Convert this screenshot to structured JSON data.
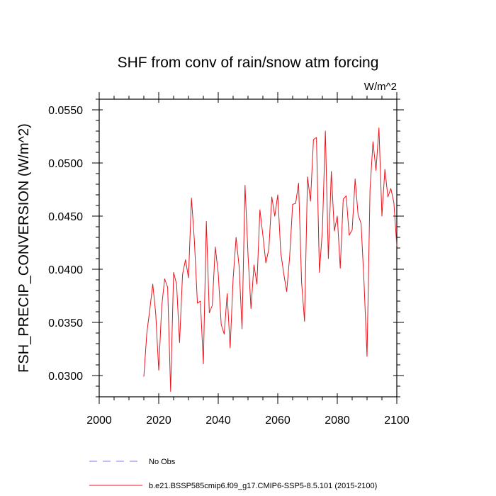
{
  "chart_data": {
    "type": "line",
    "title": "SHF from conv of rain/snow atm forcing",
    "units": "W/m^2",
    "xlabel": "",
    "ylabel": "FSH_PRECIP_CONVERSION  (W/m^2)",
    "xlim": [
      2000,
      2100
    ],
    "ylim": [
      0.028,
      0.056
    ],
    "xticks": [
      2000,
      2020,
      2040,
      2060,
      2080,
      2100
    ],
    "yticks": [
      0.03,
      0.035,
      0.04,
      0.045,
      0.05,
      0.055
    ],
    "ytick_labels": [
      "0.0300",
      "0.0350",
      "0.0400",
      "0.0450",
      "0.0500",
      "0.0550"
    ],
    "legend": [
      {
        "label": "No Obs",
        "style": "dashed",
        "color": "#7a7af0"
      },
      {
        "label": "b.e21.BSSP585cmip6.f09_g17.CMIP6-SSP5-8.5.101 (2015-2100)",
        "style": "solid",
        "color": "#e8141c"
      }
    ],
    "series": [
      {
        "name": "b.e21.BSSP585cmip6.f09_g17.CMIP6-SSP5-8.5.101 (2015-2100)",
        "color": "#e8141c",
        "x": [
          2015,
          2016,
          2017,
          2018,
          2019,
          2020,
          2021,
          2022,
          2023,
          2024,
          2025,
          2026,
          2027,
          2028,
          2029,
          2030,
          2031,
          2032,
          2033,
          2034,
          2035,
          2036,
          2037,
          2038,
          2039,
          2040,
          2041,
          2042,
          2043,
          2044,
          2045,
          2046,
          2047,
          2048,
          2049,
          2050,
          2051,
          2052,
          2053,
          2054,
          2055,
          2056,
          2057,
          2058,
          2059,
          2060,
          2061,
          2062,
          2063,
          2064,
          2065,
          2066,
          2067,
          2068,
          2069,
          2070,
          2071,
          2072,
          2073,
          2074,
          2075,
          2076,
          2077,
          2078,
          2079,
          2080,
          2081,
          2082,
          2083,
          2084,
          2085,
          2086,
          2087,
          2088,
          2089,
          2090,
          2091,
          2092,
          2093,
          2094,
          2095,
          2096,
          2097,
          2098,
          2099,
          2100
        ],
        "values": [
          0.0299,
          0.034,
          0.0362,
          0.0386,
          0.0358,
          0.0305,
          0.0365,
          0.0391,
          0.0383,
          0.0285,
          0.0397,
          0.0386,
          0.0331,
          0.0395,
          0.0409,
          0.0392,
          0.0467,
          0.0426,
          0.0368,
          0.037,
          0.0311,
          0.0445,
          0.0359,
          0.0366,
          0.0421,
          0.0396,
          0.0348,
          0.0339,
          0.0377,
          0.0326,
          0.0391,
          0.043,
          0.0403,
          0.0344,
          0.0479,
          0.0414,
          0.0363,
          0.0404,
          0.0386,
          0.0456,
          0.0432,
          0.0406,
          0.0419,
          0.0468,
          0.045,
          0.047,
          0.0416,
          0.0396,
          0.0379,
          0.0412,
          0.0461,
          0.0462,
          0.0481,
          0.0388,
          0.0351,
          0.0487,
          0.0464,
          0.0522,
          0.0524,
          0.0397,
          0.0437,
          0.053,
          0.041,
          0.0492,
          0.0436,
          0.045,
          0.0401,
          0.0466,
          0.0469,
          0.0432,
          0.0437,
          0.0485,
          0.0451,
          0.0443,
          0.0387,
          0.0318,
          0.0475,
          0.052,
          0.0493,
          0.0533,
          0.045,
          0.0494,
          0.0468,
          0.0476,
          0.0463,
          0.0422
        ]
      }
    ]
  }
}
